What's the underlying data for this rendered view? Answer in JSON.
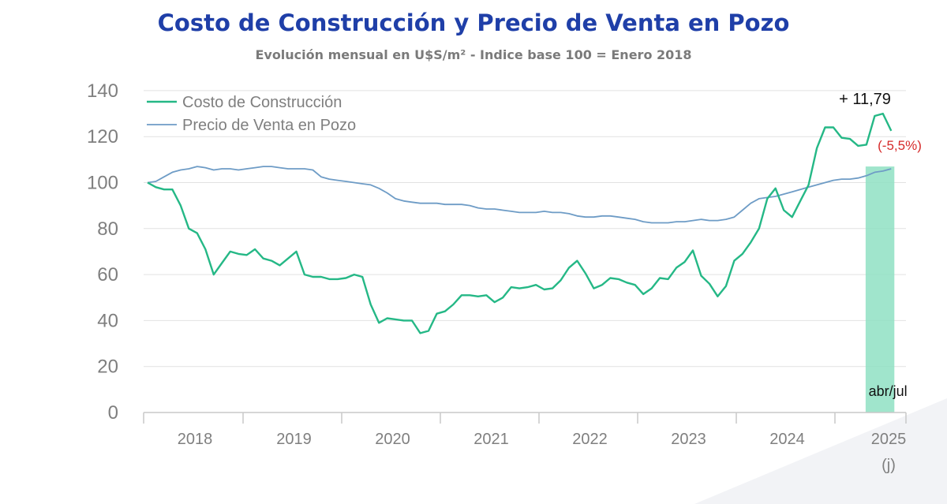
{
  "chart_data": {
    "type": "line",
    "title": "Costo de Construcción y Precio de Venta en Pozo",
    "subtitle": "Evolución mensual en U$S/m² - Indice base 100 = Enero 2018",
    "xlabel": "",
    "ylabel": "",
    "ylim": [
      0,
      140
    ],
    "yticks": [
      "0",
      "20",
      "40",
      "60",
      "80",
      "100",
      "120",
      "140"
    ],
    "year_labels": [
      "2018",
      "2019",
      "2020",
      "2021",
      "2022",
      "2023",
      "2024",
      "2025"
    ],
    "year_label_suffix": "(j)",
    "grid": true,
    "legend_position": "top-left",
    "x_start": "2018-01",
    "x_frequency": "monthly",
    "series": [
      {
        "name": "Costo de Construcción",
        "color": "#25b886",
        "values": [
          100,
          98,
          97,
          97,
          90,
          80,
          78,
          71,
          60,
          65,
          70,
          69,
          68.5,
          71,
          67,
          66,
          64,
          67,
          70,
          60,
          59,
          59,
          58,
          58,
          58.5,
          60,
          59,
          47,
          39,
          41,
          40.5,
          40,
          40,
          34.5,
          35.5,
          43,
          44,
          47,
          51,
          51,
          50.5,
          51,
          48,
          50,
          54.5,
          54,
          54.5,
          55.5,
          53.5,
          54,
          57.5,
          63,
          66,
          60.5,
          54,
          55.5,
          58.5,
          58,
          56.5,
          55.5,
          51.5,
          54,
          58.5,
          58,
          63,
          65.5,
          70.5,
          59.5,
          56,
          50.5,
          55,
          66,
          69,
          74,
          80,
          93,
          97.5,
          88,
          85,
          92,
          99,
          115,
          124,
          124,
          119.5,
          119,
          116,
          116.5,
          129,
          130,
          122.5
        ]
      },
      {
        "name": "Precio de Venta en Pozo",
        "color": "#6e9cc6",
        "values": [
          100,
          100.5,
          102.5,
          104.5,
          105.5,
          106,
          107,
          106.5,
          105.5,
          106,
          106,
          105.5,
          106,
          106.5,
          107,
          107,
          106.5,
          106,
          106,
          106,
          105.5,
          102.5,
          101.5,
          101,
          100.5,
          100,
          99.5,
          99,
          97.5,
          95.5,
          93,
          92,
          91.5,
          91,
          91,
          91,
          90.5,
          90.5,
          90.5,
          90,
          89,
          88.5,
          88.5,
          88,
          87.5,
          87,
          87,
          87,
          87.5,
          87,
          87,
          86.5,
          85.5,
          85,
          85,
          85.5,
          85.5,
          85,
          84.5,
          84,
          83,
          82.5,
          82.5,
          82.5,
          83,
          83,
          83.5,
          84,
          83.5,
          83.5,
          84,
          85,
          88,
          91,
          93,
          93.5,
          94,
          95,
          96,
          97,
          98,
          99,
          100,
          101,
          101.5,
          101.5,
          102,
          103,
          104.5,
          105,
          106
        ]
      }
    ],
    "highlight": {
      "label": "abr/jul",
      "color": "#8fe0c3",
      "from_month_index": 87,
      "to_month_index": 90
    },
    "annotations": [
      {
        "text": "+ 11,79",
        "color": "#111111"
      },
      {
        "text": "(-5,5%)",
        "color": "#d62a2a"
      }
    ]
  }
}
